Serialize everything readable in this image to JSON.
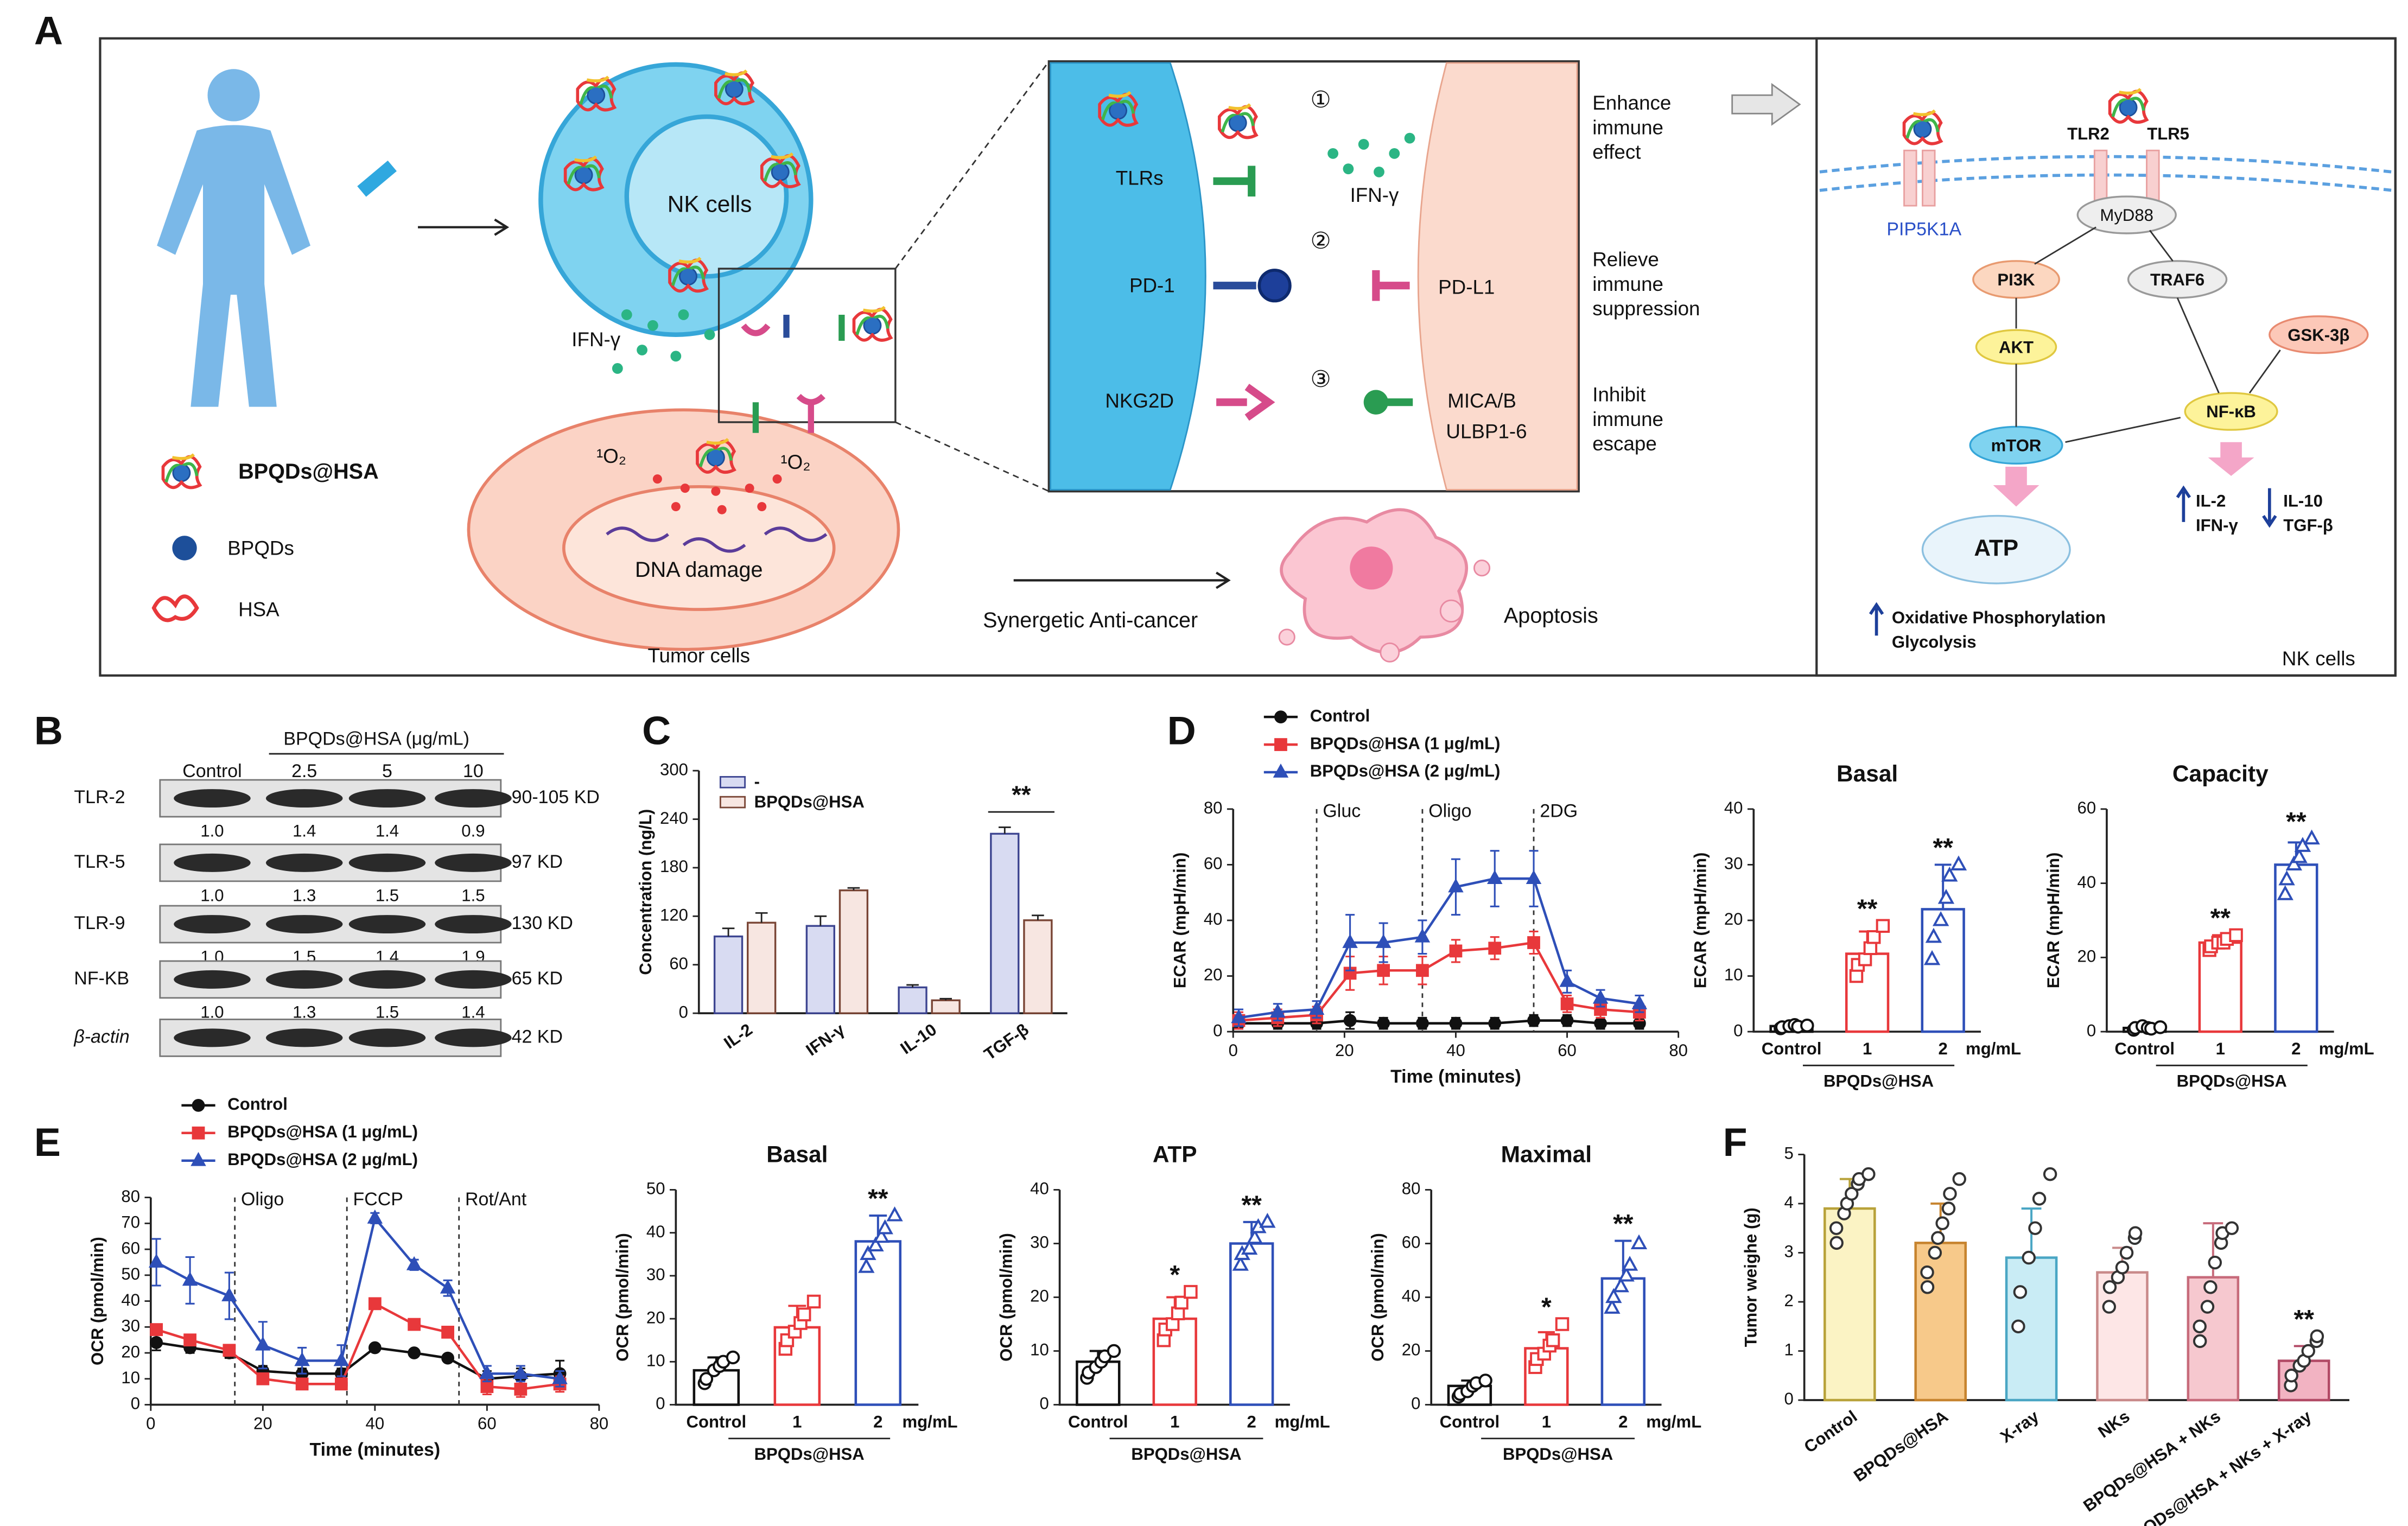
{
  "panel_labels": [
    "A",
    "B",
    "C",
    "D",
    "E",
    "F"
  ],
  "diagram": {
    "nk_cell": "NK cells",
    "ifn_gamma": "IFN-γ",
    "legend": [
      "BPQDs@HSA",
      "BPQDs",
      "HSA"
    ],
    "singlet_oxygen": [
      "¹O₂",
      "¹O₂"
    ],
    "dna_damage": "DNA damage",
    "tumor_cells": "Tumor cells",
    "synergy": "Synergetic Anti-cancer",
    "apoptosis": "Apoptosis",
    "receptors": [
      "TLRs",
      "PD-1",
      "NKG2D"
    ],
    "zoom_ifn": "IFN-γ",
    "ligands": [
      "PD-L1",
      "MICA/B",
      "ULBP1-6"
    ],
    "steps": [
      "①",
      "②",
      "③"
    ],
    "effects": [
      [
        "Enhance",
        "immune",
        "effect"
      ],
      [
        "Relieve",
        "immune",
        "suppression"
      ],
      [
        "Inhibit",
        "immune",
        "escape"
      ]
    ],
    "pathway": {
      "pip5k1a": "PIP5K1A",
      "tlr2": "TLR2",
      "tlr5": "TLR5",
      "myd88": "MyD88",
      "pi3k": "PI3K",
      "traf6": "TRAF6",
      "akt": "AKT",
      "gsk3b": "GSK-3β",
      "nfkb": "NF-κB",
      "mtor": "mTOR",
      "atp": "ATP",
      "up_cytokines": [
        "IL-2",
        "IFN-γ"
      ],
      "down_cytokines": [
        "IL-10",
        "TGF-β"
      ],
      "metabolism": [
        "Oxidative Phosphorylation",
        "Glycolysis"
      ],
      "cell": "NK cells"
    }
  },
  "blot": {
    "title": "BPQDs@HSA (μg/mL)",
    "lanes": [
      "Control",
      "2.5",
      "5",
      "10"
    ],
    "rows": [
      {
        "protein": "TLR-2",
        "ratios": [
          "1.0",
          "1.4",
          "1.4",
          "0.9"
        ],
        "size": "90-105 KD"
      },
      {
        "protein": "TLR-5",
        "ratios": [
          "1.0",
          "1.3",
          "1.5",
          "1.5"
        ],
        "size": "97 KD"
      },
      {
        "protein": "TLR-9",
        "ratios": [
          "1.0",
          "1.5",
          "1.4",
          "1.9"
        ],
        "size": "130 KD"
      },
      {
        "protein": "NF-KB",
        "ratios": [
          "1.0",
          "1.3",
          "1.5",
          "1.4"
        ],
        "size": "65 KD"
      },
      {
        "protein": "β-actin",
        "size": "42 KD"
      }
    ]
  },
  "chart_data": [
    {
      "type": "bar",
      "ylabel": "Concentration (ng/L)",
      "categories": [
        "IL-2",
        "IFN-γ",
        "IL-10",
        "TGF-β"
      ],
      "series": [
        {
          "name": "-",
          "color": "#3d4591",
          "fill": "#d8dbf2",
          "values": [
            95,
            108,
            32,
            222
          ],
          "errors": [
            10,
            12,
            3,
            8
          ]
        },
        {
          "name": "BPQDs@HSA",
          "color": "#7a4636",
          "fill": "#f7e6e1",
          "values": [
            112,
            152,
            16,
            115
          ],
          "errors": [
            12,
            3,
            2,
            6
          ]
        }
      ],
      "significance": [
        null,
        null,
        null,
        "**"
      ],
      "ylim": [
        0,
        300
      ],
      "yticks": [
        0,
        60,
        120,
        180,
        240,
        300
      ],
      "legend": "upper left"
    },
    {
      "type": "line",
      "xlabel": "Time (minutes)",
      "ylabel": "ECAR (mpH/min)",
      "x": [
        1,
        8,
        15,
        21,
        27,
        34,
        40,
        47,
        54,
        60,
        66,
        73
      ],
      "series": [
        {
          "name": "Control",
          "color": "#111111",
          "marker": "circle",
          "values": [
            3,
            3,
            3,
            4,
            3,
            3,
            3,
            3,
            4,
            4,
            3,
            3
          ],
          "errors": [
            2,
            2,
            2,
            3,
            2,
            2,
            2,
            2,
            2,
            2,
            2,
            2
          ]
        },
        {
          "name": "BPQDs@HSA (1 μg/mL)",
          "color": "#e8383b",
          "marker": "square",
          "values": [
            4,
            5,
            6,
            21,
            22,
            22,
            29,
            30,
            32,
            10,
            8,
            7
          ],
          "errors": [
            3,
            3,
            3,
            6,
            5,
            5,
            4,
            4,
            4,
            3,
            3,
            3
          ]
        },
        {
          "name": "BPQDs@HSA (2 μg/mL)",
          "color": "#2e4fb8",
          "marker": "triangle",
          "values": [
            5,
            7,
            8,
            32,
            32,
            34,
            52,
            55,
            55,
            18,
            12,
            10
          ],
          "errors": [
            3,
            3,
            3,
            10,
            7,
            6,
            10,
            10,
            10,
            4,
            3,
            3
          ]
        }
      ],
      "injections": [
        {
          "x": 15,
          "label": "Gluc"
        },
        {
          "x": 34,
          "label": "Oligo"
        },
        {
          "x": 54,
          "label": "2DG"
        }
      ],
      "xlim": [
        0,
        80
      ],
      "xticks": [
        0,
        20,
        40,
        60,
        80
      ],
      "ylim": [
        0,
        80
      ],
      "yticks": [
        0,
        20,
        40,
        60,
        80
      ],
      "legend": "above"
    },
    {
      "type": "bar",
      "title": "Basal",
      "ylabel": "ECAR (mpH/min)",
      "categories": [
        "Control",
        "1",
        "2"
      ],
      "unit": "mg/mL",
      "group_label": "BPQDs@HSA",
      "values": [
        1,
        14,
        22
      ],
      "errors": [
        0.4,
        4,
        8
      ],
      "points": [
        [
          0.6,
          0.8,
          1,
          1.2,
          0.9,
          1.1
        ],
        [
          10,
          12,
          13,
          15,
          17,
          19
        ],
        [
          13,
          17,
          20,
          24,
          28,
          30
        ]
      ],
      "colors": [
        "#111111",
        "#e8383b",
        "#2e4fb8"
      ],
      "markers": [
        "circle",
        "square",
        "triangle"
      ],
      "significance": [
        null,
        "**",
        "**"
      ],
      "ylim": [
        0,
        40
      ],
      "yticks": [
        0,
        10,
        20,
        30,
        40
      ]
    },
    {
      "type": "bar",
      "title": "Capacity",
      "ylabel": "ECAR (mpH/min)",
      "categories": [
        "Control",
        "1",
        "2"
      ],
      "unit": "mg/mL",
      "group_label": "BPQDs@HSA",
      "values": [
        1,
        24,
        45
      ],
      "errors": [
        1,
        2,
        6
      ],
      "points": [
        [
          0.5,
          1,
          1.5,
          1,
          0.8,
          1.2
        ],
        [
          22,
          23,
          24,
          24,
          25,
          26
        ],
        [
          37,
          41,
          45,
          47,
          50,
          52
        ]
      ],
      "colors": [
        "#111111",
        "#e8383b",
        "#2e4fb8"
      ],
      "markers": [
        "circle",
        "square",
        "triangle"
      ],
      "significance": [
        null,
        "**",
        "**"
      ],
      "ylim": [
        0,
        60
      ],
      "yticks": [
        0,
        20,
        40,
        60
      ]
    },
    {
      "type": "line",
      "xlabel": "Time (minutes)",
      "ylabel": "OCR (pmol/min)",
      "x": [
        1,
        7,
        14,
        20,
        27,
        34,
        40,
        47,
        53,
        60,
        66,
        73
      ],
      "series": [
        {
          "name": "Control",
          "color": "#111111",
          "marker": "circle",
          "values": [
            24,
            22,
            20,
            13,
            12,
            12,
            22,
            20,
            18,
            10,
            11,
            12
          ],
          "errors": [
            3,
            2,
            2,
            2,
            2,
            2,
            1,
            1,
            1,
            3,
            3,
            5
          ]
        },
        {
          "name": "BPQDs@HSA (1 μg/mL)",
          "color": "#e8383b",
          "marker": "square",
          "values": [
            29,
            25,
            21,
            10,
            8,
            8,
            39,
            31,
            28,
            7,
            6,
            8
          ],
          "errors": [
            2,
            2,
            2,
            2,
            1,
            2,
            1,
            1,
            1,
            3,
            3,
            3
          ]
        },
        {
          "name": "BPQDs@HSA (2 μg/mL)",
          "color": "#2e4fb8",
          "marker": "triangle",
          "values": [
            55,
            48,
            42,
            23,
            17,
            17,
            72,
            54,
            45,
            12,
            12,
            10
          ],
          "errors": [
            9,
            9,
            9,
            9,
            5,
            6,
            2,
            2,
            3,
            3,
            3,
            3
          ]
        }
      ],
      "injections": [
        {
          "x": 15,
          "label": "Oligo"
        },
        {
          "x": 35,
          "label": "FCCP"
        },
        {
          "x": 55,
          "label": "Rot/Ant"
        }
      ],
      "xlim": [
        0,
        80
      ],
      "xticks": [
        0,
        20,
        40,
        60,
        80
      ],
      "ylim": [
        0,
        80
      ],
      "yticks": [
        0,
        10,
        20,
        30,
        40,
        50,
        60,
        70,
        80
      ],
      "legend": "above"
    },
    {
      "type": "bar",
      "title": "Basal",
      "ylabel": "OCR (pmol/min)",
      "categories": [
        "Control",
        "1",
        "2"
      ],
      "unit": "mg/mL",
      "group_label": "BPQDs@HSA",
      "values": [
        8,
        18,
        38
      ],
      "errors": [
        3,
        5,
        6
      ],
      "points": [
        [
          5,
          6,
          8,
          9,
          10,
          11
        ],
        [
          13,
          15,
          17,
          19,
          21,
          24
        ],
        [
          32,
          35,
          37,
          39,
          41,
          44
        ]
      ],
      "colors": [
        "#111111",
        "#e8383b",
        "#2e4fb8"
      ],
      "markers": [
        "circle",
        "square",
        "triangle"
      ],
      "significance": [
        null,
        null,
        "**"
      ],
      "ylim": [
        0,
        50
      ],
      "yticks": [
        0,
        10,
        20,
        30,
        40,
        50
      ]
    },
    {
      "type": "bar",
      "title": "ATP",
      "ylabel": "OCR (pmol/min)",
      "categories": [
        "Control",
        "1",
        "2"
      ],
      "unit": "mg/mL",
      "group_label": "BPQDs@HSA",
      "values": [
        8,
        16,
        30
      ],
      "errors": [
        2,
        4,
        4
      ],
      "points": [
        [
          5,
          6,
          7,
          8,
          9,
          10
        ],
        [
          12,
          14,
          15,
          17,
          19,
          21
        ],
        [
          26,
          28,
          29,
          31,
          33,
          34
        ]
      ],
      "colors": [
        "#111111",
        "#e8383b",
        "#2e4fb8"
      ],
      "markers": [
        "circle",
        "square",
        "triangle"
      ],
      "significance": [
        null,
        "*",
        "**"
      ],
      "ylim": [
        0,
        40
      ],
      "yticks": [
        0,
        10,
        20,
        30,
        40
      ]
    },
    {
      "type": "bar",
      "title": "Maximal",
      "ylabel": "OCR (pmol/min)",
      "categories": [
        "Control",
        "1",
        "2"
      ],
      "unit": "mg/mL",
      "group_label": "BPQDs@HSA",
      "values": [
        7,
        21,
        47
      ],
      "errors": [
        2,
        6,
        14
      ],
      "points": [
        [
          3,
          4,
          5,
          7,
          8,
          9
        ],
        [
          14,
          17,
          19,
          22,
          24,
          30
        ],
        [
          36,
          40,
          44,
          48,
          52,
          60
        ]
      ],
      "colors": [
        "#111111",
        "#e8383b",
        "#2e4fb8"
      ],
      "markers": [
        "circle",
        "square",
        "triangle"
      ],
      "significance": [
        null,
        "*",
        "**"
      ],
      "ylim": [
        0,
        80
      ],
      "yticks": [
        0,
        20,
        40,
        60,
        80
      ]
    },
    {
      "type": "bar",
      "ylabel": "Tumor weighe (g)",
      "categories": [
        "Control",
        "BPQDs@HSA",
        "X-ray",
        "NKs",
        "BPQDs@HSA + NKs",
        "BPQDs@HSA + NKs + X-ray"
      ],
      "values": [
        3.9,
        3.2,
        2.9,
        2.6,
        2.5,
        0.8
      ],
      "errors": [
        0.6,
        0.8,
        1.0,
        0.5,
        1.1,
        0.3
      ],
      "points": [
        [
          3.2,
          3.5,
          3.8,
          4.0,
          4.2,
          4.4,
          4.5,
          4.6
        ],
        [
          2.3,
          2.6,
          3.0,
          3.3,
          3.6,
          3.9,
          4.2,
          4.5
        ],
        [
          1.5,
          2.2,
          2.9,
          3.5,
          4.1,
          4.6
        ],
        [
          1.9,
          2.3,
          2.5,
          2.7,
          3.0,
          3.3,
          3.4
        ],
        [
          1.2,
          1.5,
          1.9,
          2.3,
          2.8,
          3.2,
          3.4,
          3.5
        ],
        [
          0.3,
          0.5,
          0.7,
          0.8,
          1.0,
          1.2,
          1.3
        ]
      ],
      "colors": [
        "#b8a23a",
        "#c7842f",
        "#4aa6c4",
        "#c98a8a",
        "#c76b7b",
        "#b24a66"
      ],
      "fills": [
        "#fbf3c4",
        "#f7c98a",
        "#c9ecf5",
        "#fde6e6",
        "#f6c8cf",
        "#f2b3c2"
      ],
      "point_color": "#333333",
      "markers": [
        "circle",
        "circle",
        "circle",
        "circle",
        "circle",
        "circle"
      ],
      "significance": [
        null,
        null,
        null,
        null,
        null,
        "**"
      ],
      "ylim": [
        0,
        5
      ],
      "yticks": [
        0,
        1,
        2,
        3,
        4,
        5
      ]
    }
  ]
}
